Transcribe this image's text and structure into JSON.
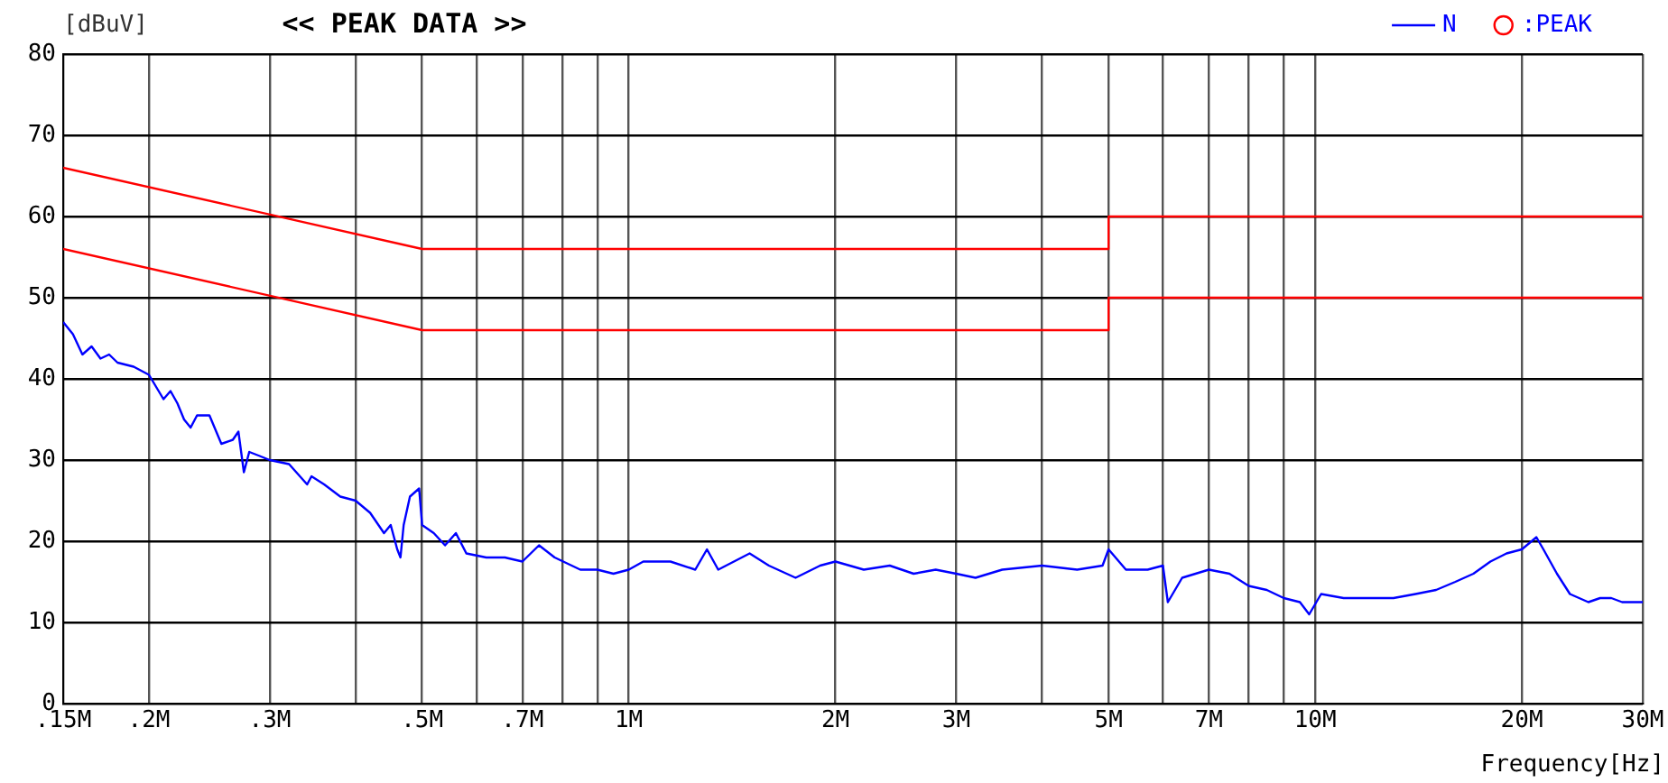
{
  "chart_data": {
    "type": "line",
    "title": "<< PEAK DATA >>",
    "ylabel": "[dBuV]",
    "xlabel": "Frequency[Hz]",
    "log": "x",
    "xlim": [
      0.15,
      30
    ],
    "xticks": [
      {
        "value": 0.15,
        "label": ".15M"
      },
      {
        "value": 0.2,
        "label": ".2M"
      },
      {
        "value": 0.3,
        "label": ".3M"
      },
      {
        "value": 0.4,
        "label": null
      },
      {
        "value": 0.5,
        "label": ".5M"
      },
      {
        "value": 0.6,
        "label": null
      },
      {
        "value": 0.7,
        "label": ".7M"
      },
      {
        "value": 0.8,
        "label": null
      },
      {
        "value": 0.9,
        "label": null
      },
      {
        "value": 1,
        "label": "1M"
      },
      {
        "value": 2,
        "label": "2M"
      },
      {
        "value": 3,
        "label": "3M"
      },
      {
        "value": 4,
        "label": null
      },
      {
        "value": 5,
        "label": "5M"
      },
      {
        "value": 6,
        "label": null
      },
      {
        "value": 7,
        "label": "7M"
      },
      {
        "value": 8,
        "label": null
      },
      {
        "value": 9,
        "label": null
      },
      {
        "value": 10,
        "label": "10M"
      },
      {
        "value": 20,
        "label": "20M"
      },
      {
        "value": 30,
        "label": "30M"
      }
    ],
    "ylim": [
      0,
      80
    ],
    "yticks": [
      0,
      10,
      20,
      30,
      40,
      50,
      60,
      70,
      80
    ],
    "grid": true,
    "legend": "top right",
    "marker": "none",
    "line_style": "solid",
    "series": [
      {
        "name": "N",
        "color": "#0000ff",
        "x": [
          0.15,
          0.155,
          0.16,
          0.165,
          0.17,
          0.175,
          0.18,
          0.19,
          0.2,
          0.21,
          0.215,
          0.22,
          0.225,
          0.23,
          0.235,
          0.245,
          0.255,
          0.265,
          0.27,
          0.275,
          0.28,
          0.29,
          0.3,
          0.32,
          0.34,
          0.345,
          0.36,
          0.38,
          0.4,
          0.42,
          0.44,
          0.45,
          0.46,
          0.465,
          0.47,
          0.48,
          0.495,
          0.5,
          0.52,
          0.54,
          0.56,
          0.58,
          0.62,
          0.66,
          0.7,
          0.74,
          0.78,
          0.85,
          0.9,
          0.95,
          1,
          1.05,
          1.15,
          1.25,
          1.3,
          1.35,
          1.5,
          1.6,
          1.75,
          1.9,
          2,
          2.2,
          2.4,
          2.6,
          2.8,
          3,
          3.2,
          3.5,
          4,
          4.5,
          4.9,
          5,
          5.3,
          5.7,
          6,
          6.1,
          6.4,
          7,
          7.5,
          8,
          8.5,
          9,
          9.5,
          9.8,
          10.2,
          11,
          12,
          13,
          14,
          15,
          16,
          17,
          18,
          19,
          20,
          21,
          21.5,
          22.5,
          23.5,
          25,
          26,
          27,
          28,
          30
        ],
        "values": [
          47,
          45.5,
          43,
          44,
          42.5,
          43,
          42,
          41.5,
          40.5,
          37.5,
          38.5,
          37,
          35,
          34,
          35.5,
          35.5,
          32,
          32.5,
          33.5,
          28.5,
          31,
          30.5,
          30,
          29.5,
          27,
          28,
          27,
          25.5,
          25,
          23.5,
          21,
          22,
          19,
          18,
          22,
          25.5,
          26.5,
          22,
          21,
          19.5,
          21,
          18.5,
          18,
          18,
          17.5,
          19.5,
          18,
          16.5,
          16.5,
          16,
          16.5,
          17.5,
          17.5,
          16.5,
          19,
          16.5,
          18.5,
          17,
          15.5,
          17,
          17.5,
          16.5,
          17,
          16,
          16.5,
          16,
          15.5,
          16.5,
          17,
          16.5,
          17,
          19,
          16.5,
          16.5,
          17,
          12.5,
          15.5,
          16.5,
          16,
          14.5,
          14,
          13,
          12.5,
          11,
          13.5,
          13,
          13,
          13,
          13.5,
          14,
          15,
          16,
          17.5,
          18.5,
          19,
          20.5,
          19,
          16,
          13.5,
          12.5,
          13,
          13,
          12.5,
          12.5
        ]
      },
      {
        "name": ":PEAK",
        "color": "#ff0000",
        "type": "scatter",
        "marker": "circle"
      },
      {
        "color": "#ff0000",
        "type": "line",
        "x": [
          0.15,
          0.5,
          0.5,
          5,
          5,
          30
        ],
        "values": [
          66,
          56,
          56,
          56,
          60,
          60
        ]
      },
      {
        "color": "#ff0000",
        "type": "line",
        "x": [
          0.15,
          0.5,
          0.5,
          5,
          5,
          30
        ],
        "values": [
          56,
          46,
          46,
          46,
          50,
          50
        ]
      }
    ]
  }
}
